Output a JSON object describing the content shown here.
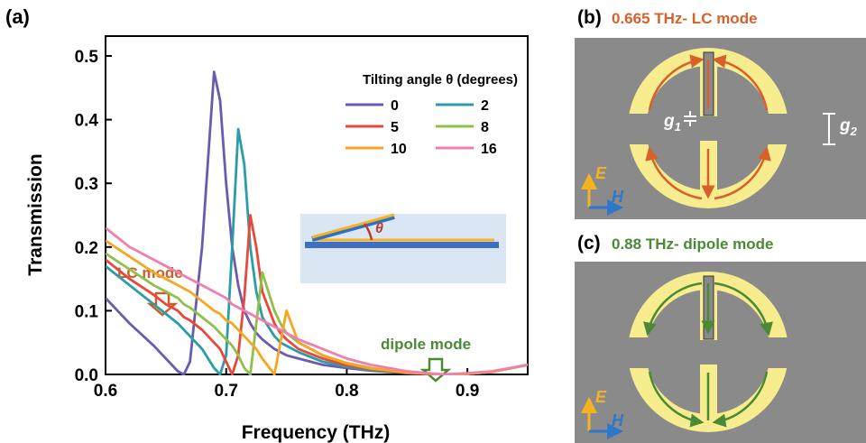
{
  "chart_data": {
    "type": "line",
    "panel_label": "(a)",
    "xlabel": "Frequency (THz)",
    "ylabel": "Transmission",
    "x": [
      0.6,
      0.62,
      0.64,
      0.65,
      0.66,
      0.665,
      0.67,
      0.68,
      0.69,
      0.695,
      0.7,
      0.705,
      0.71,
      0.715,
      0.72,
      0.725,
      0.73,
      0.74,
      0.745,
      0.75,
      0.76,
      0.78,
      0.8,
      0.82,
      0.85,
      0.88,
      0.9,
      0.92,
      0.95
    ],
    "xlim": [
      0.6,
      0.95
    ],
    "xticks": [
      0.6,
      0.7,
      0.8,
      0.9
    ],
    "ylim": [
      0,
      0.5
    ],
    "yticks": [
      {
        "value": 0,
        "label": "0.0"
      },
      0.1,
      0.2,
      0.3,
      0.4,
      0.5
    ],
    "legend_title": "Tilting angle θ (degrees)",
    "series": [
      {
        "name": "0",
        "color": "#6a5bb0",
        "values": [
          0.12,
          0.08,
          0.045,
          0.025,
          0.005,
          0,
          0.02,
          0.2,
          0.475,
          0.43,
          0.3,
          0.2,
          0.14,
          0.1,
          0.08,
          0.065,
          0.055,
          0.04,
          0.035,
          0.03,
          0.025,
          0.015,
          0.01,
          0.006,
          0.002,
          0,
          0.001,
          0.004,
          0.015
        ]
      },
      {
        "name": "2",
        "color": "#2a9da6",
        "values": [
          0.17,
          0.14,
          0.11,
          0.095,
          0.08,
          0.07,
          0.06,
          0.04,
          0.01,
          0,
          0.03,
          0.2,
          0.385,
          0.33,
          0.2,
          0.13,
          0.09,
          0.06,
          0.05,
          0.045,
          0.035,
          0.02,
          0.012,
          0.007,
          0.002,
          0,
          0.001,
          0.004,
          0.015
        ]
      },
      {
        "name": "5",
        "color": "#e8483c",
        "values": [
          0.18,
          0.15,
          0.125,
          0.11,
          0.1,
          0.09,
          0.085,
          0.07,
          0.05,
          0.04,
          0.02,
          0,
          0.03,
          0.12,
          0.25,
          0.2,
          0.13,
          0.08,
          0.065,
          0.055,
          0.04,
          0.025,
          0.014,
          0.008,
          0.002,
          0,
          0.001,
          0.004,
          0.015
        ]
      },
      {
        "name": "8",
        "color": "#8fc04a",
        "values": [
          0.19,
          0.165,
          0.14,
          0.13,
          0.12,
          0.11,
          0.105,
          0.09,
          0.075,
          0.065,
          0.055,
          0.045,
          0.03,
          0.01,
          0,
          0.08,
          0.16,
          0.1,
          0.08,
          0.065,
          0.05,
          0.03,
          0.017,
          0.009,
          0.003,
          0,
          0.001,
          0.004,
          0.015
        ]
      },
      {
        "name": "10",
        "color": "#f5a623",
        "values": [
          0.21,
          0.185,
          0.16,
          0.15,
          0.14,
          0.135,
          0.13,
          0.115,
          0.1,
          0.095,
          0.085,
          0.08,
          0.07,
          0.06,
          0.05,
          0.04,
          0.025,
          0,
          0.05,
          0.1,
          0.05,
          0.03,
          0.018,
          0.01,
          0.003,
          0,
          0.001,
          0.004,
          0.015
        ]
      },
      {
        "name": "16",
        "color": "#f07fb0",
        "values": [
          0.23,
          0.2,
          0.18,
          0.17,
          0.16,
          0.155,
          0.15,
          0.14,
          0.13,
          0.125,
          0.12,
          0.11,
          0.105,
          0.1,
          0.095,
          0.09,
          0.085,
          0.075,
          0.07,
          0.065,
          0.055,
          0.04,
          0.025,
          0.015,
          0.005,
          0,
          0.002,
          0.005,
          0.015
        ]
      }
    ],
    "annotations": [
      {
        "text": "LC mode",
        "color": "#c8602a"
      },
      {
        "text": "dipole mode",
        "color": "#4a8a34"
      }
    ],
    "inset_label": "θ"
  },
  "panels": [
    {
      "label": "(b)",
      "title": "0.665 THz- LC mode",
      "color": "#d8602a",
      "g1": "g",
      "g1_sub": "1",
      "g2": "g",
      "g2_sub": "2",
      "E": "E",
      "H": "H"
    },
    {
      "label": "(c)",
      "title": "0.88 THz- dipole mode",
      "color": "#4a8a34",
      "E": "E",
      "H": "H"
    }
  ]
}
